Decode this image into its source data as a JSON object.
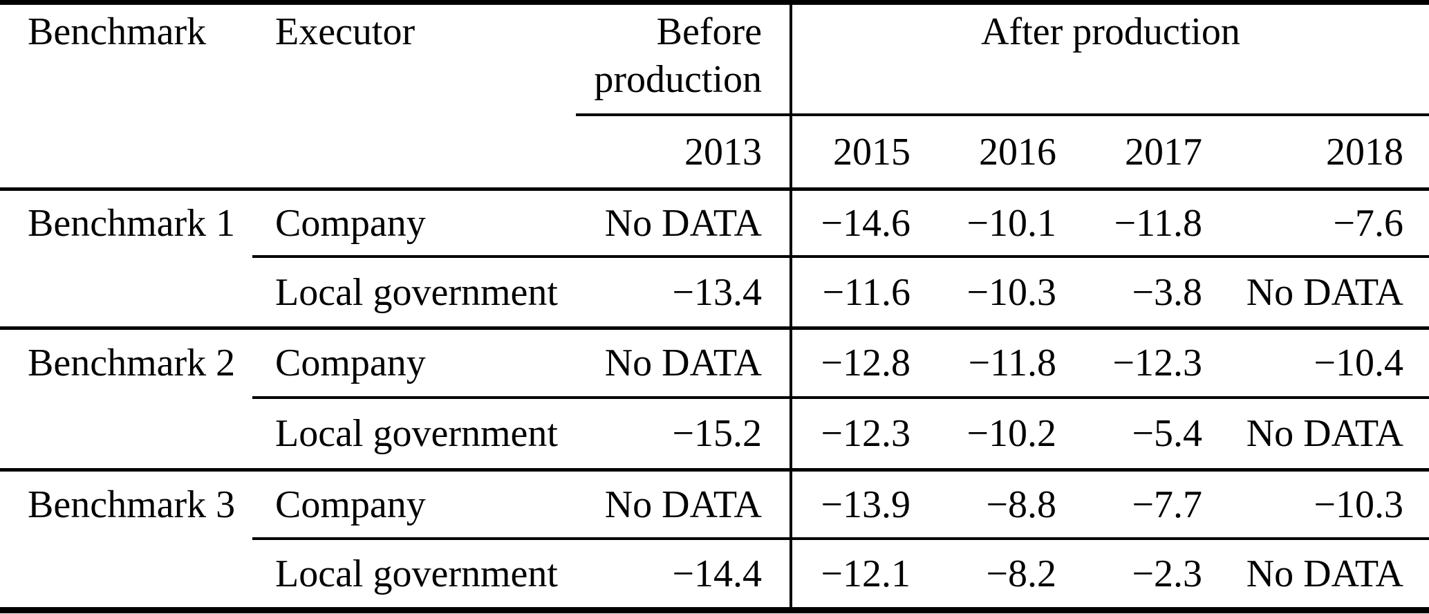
{
  "colors": {
    "background": "#ffffff",
    "text": "#000000",
    "rule": "#000000"
  },
  "table": {
    "headers": {
      "benchmark": "Benchmark",
      "executor": "Executor",
      "before_line1": "Before",
      "before_line2": "production",
      "after": "After production",
      "before_year": "2013",
      "after_years": {
        "y2015": "2015",
        "y2016": "2016",
        "y2017": "2017",
        "y2018": "2018"
      }
    },
    "rows": [
      {
        "benchmark": "Benchmark 1",
        "executor": "Company",
        "y2013": "No DATA",
        "y2015": "−14.6",
        "y2016": "−10.1",
        "y2017": "−11.8",
        "y2018": "−7.6"
      },
      {
        "benchmark": "",
        "executor": "Local government",
        "y2013": "−13.4",
        "y2015": "−11.6",
        "y2016": "−10.3",
        "y2017": "−3.8",
        "y2018": "No DATA"
      },
      {
        "benchmark": "Benchmark 2",
        "executor": "Company",
        "y2013": "No DATA",
        "y2015": "−12.8",
        "y2016": "−11.8",
        "y2017": "−12.3",
        "y2018": "−10.4"
      },
      {
        "benchmark": "",
        "executor": "Local government",
        "y2013": "−15.2",
        "y2015": "−12.3",
        "y2016": "−10.2",
        "y2017": "−5.4",
        "y2018": "No DATA"
      },
      {
        "benchmark": "Benchmark 3",
        "executor": "Company",
        "y2013": "No DATA",
        "y2015": "−13.9",
        "y2016": "−8.8",
        "y2017": "−7.7",
        "y2018": "−10.3"
      },
      {
        "benchmark": "",
        "executor": "Local government",
        "y2013": "−14.4",
        "y2015": "−12.1",
        "y2016": "−8.2",
        "y2017": "−2.3",
        "y2018": "No DATA"
      }
    ]
  },
  "chart_data": {
    "type": "table",
    "title": "",
    "columns": [
      "Benchmark",
      "Executor",
      "2013 (Before production)",
      "2015",
      "2016",
      "2017",
      "2018"
    ],
    "rows": [
      [
        "Benchmark 1",
        "Company",
        "No DATA",
        -14.6,
        -10.1,
        -11.8,
        -7.6
      ],
      [
        "Benchmark 1",
        "Local government",
        -13.4,
        -11.6,
        -10.3,
        -3.8,
        "No DATA"
      ],
      [
        "Benchmark 2",
        "Company",
        "No DATA",
        -12.8,
        -11.8,
        -12.3,
        -10.4
      ],
      [
        "Benchmark 2",
        "Local government",
        -15.2,
        -12.3,
        -10.2,
        -5.4,
        "No DATA"
      ],
      [
        "Benchmark 3",
        "Company",
        "No DATA",
        -13.9,
        -8.8,
        -7.7,
        -10.3
      ],
      [
        "Benchmark 3",
        "Local government",
        -14.4,
        -12.1,
        -8.2,
        -2.3,
        "No DATA"
      ]
    ]
  }
}
